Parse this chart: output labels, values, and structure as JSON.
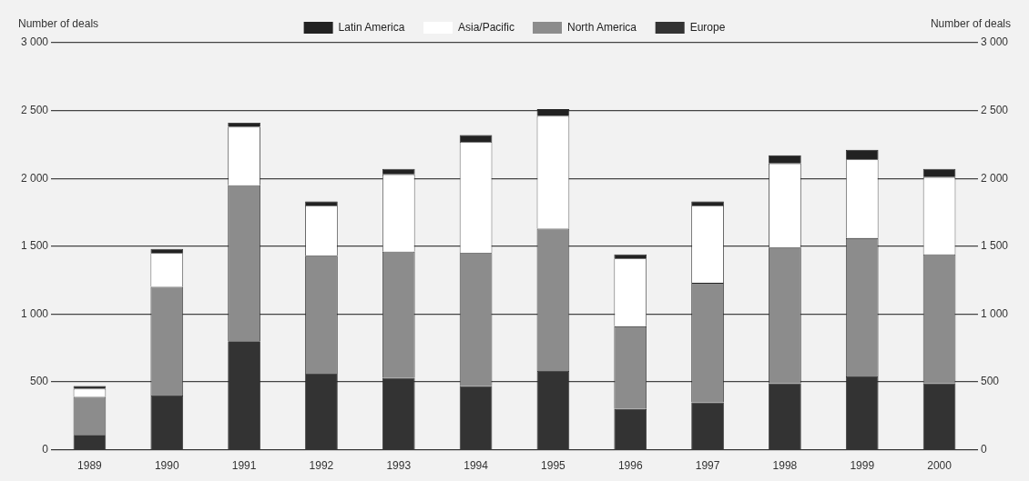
{
  "chart_data": {
    "type": "bar",
    "stacked": true,
    "ylabel": "Number of deals",
    "y2label": "Number of deals",
    "categories": [
      "1989",
      "1990",
      "1991",
      "1992",
      "1993",
      "1994",
      "1995",
      "1996",
      "1997",
      "1998",
      "1999",
      "2000"
    ],
    "series": [
      {
        "name": "Europe",
        "color": "#333333",
        "values": [
          110,
          400,
          800,
          560,
          530,
          470,
          580,
          300,
          350,
          490,
          540,
          490
        ]
      },
      {
        "name": "North America",
        "color": "#8c8c8c",
        "values": [
          280,
          800,
          1150,
          870,
          930,
          980,
          1050,
          610,
          880,
          1000,
          1020,
          950
        ]
      },
      {
        "name": "Asia/Pacific",
        "color": "#ffffff",
        "values": [
          60,
          250,
          430,
          370,
          570,
          820,
          830,
          500,
          570,
          620,
          580,
          570
        ]
      },
      {
        "name": "Latin America",
        "color": "#222222",
        "values": [
          20,
          30,
          30,
          30,
          40,
          50,
          50,
          30,
          30,
          60,
          70,
          60
        ]
      }
    ],
    "ylim": [
      0,
      3000
    ],
    "yticks": [
      0,
      500,
      {
        "value": 1000,
        "label": "1 000"
      },
      {
        "value": 1500,
        "label": "1 500"
      },
      {
        "value": 2000,
        "label": "2 000"
      },
      {
        "value": 2500,
        "label": "2 500"
      },
      {
        "value": 3000,
        "label": "3 000"
      }
    ],
    "y2lim": [
      0,
      3000
    ],
    "y2ticks": [
      0,
      500,
      {
        "value": 1000,
        "label": "1 000"
      },
      {
        "value": 1500,
        "label": "1 500"
      },
      {
        "value": 2000,
        "label": "2 000"
      },
      {
        "value": 2500,
        "label": "2 500"
      },
      {
        "value": 3000,
        "label": "3 000"
      }
    ],
    "grid": "y",
    "legend": "top"
  }
}
